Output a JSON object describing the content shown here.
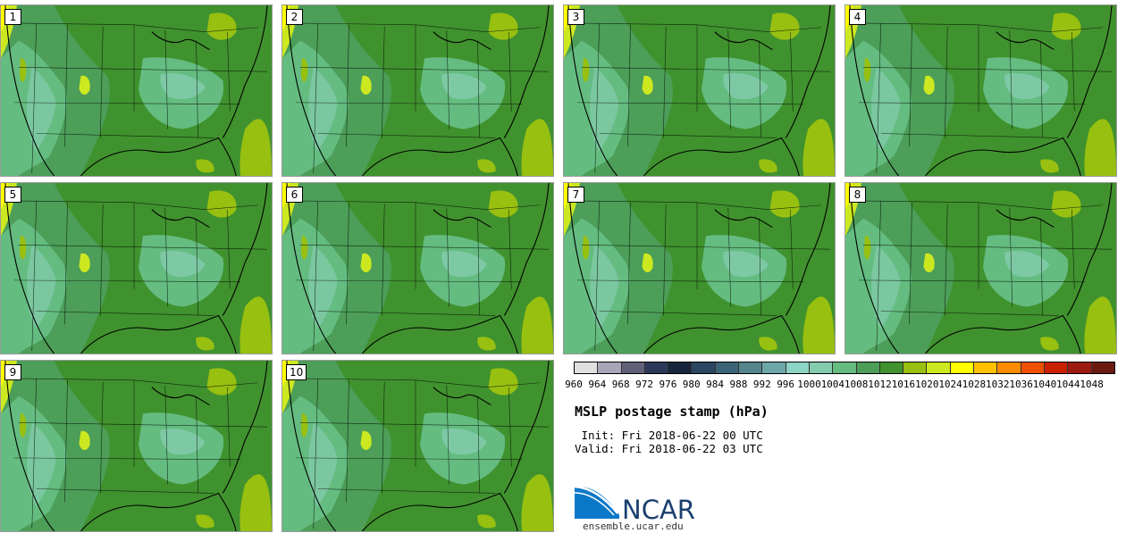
{
  "panels": [
    {
      "label": "1"
    },
    {
      "label": "2"
    },
    {
      "label": "3"
    },
    {
      "label": "4"
    },
    {
      "label": "5"
    },
    {
      "label": "6"
    },
    {
      "label": "7"
    },
    {
      "label": "8"
    },
    {
      "label": "9"
    },
    {
      "label": "10"
    }
  ],
  "colorbar": {
    "levels": [
      "960",
      "964",
      "968",
      "972",
      "976",
      "980",
      "984",
      "988",
      "992",
      "996",
      "1000",
      "1004",
      "1008",
      "1012",
      "1016",
      "1020",
      "1024",
      "1028",
      "1032",
      "1036",
      "1040",
      "1044",
      "1048"
    ],
    "colors": [
      "#e0e0e0",
      "#a6a6b6",
      "#606078",
      "#2c3858",
      "#18243a",
      "#2a4660",
      "#3c6478",
      "#54848c",
      "#6ca8a8",
      "#8cd4c4",
      "#84ccae",
      "#64bc80",
      "#4c9e58",
      "#40922e",
      "#98c010",
      "#cce820",
      "#ffff00",
      "#ffc000",
      "#ff8c00",
      "#f05000",
      "#c82000",
      "#9c1a10",
      "#6c1a10"
    ]
  },
  "title": "MSLP postage stamp (hPa)",
  "init_line": " Init: Fri 2018-06-22 00 UTC",
  "valid_line": "Valid: Fri 2018-06-22 03 UTC",
  "logo": {
    "text": "NCAR",
    "color": "#1a3f6e",
    "swoosh_color": "#0a78c8"
  },
  "url": "ensemble.ucar.edu",
  "map_colors": {
    "c1012": "#40922e",
    "c1008": "#4c9e58",
    "c1004": "#64bc80",
    "c1000": "#84ccae",
    "c1016": "#98c010",
    "c1020": "#cce820",
    "c1024": "#ffff00"
  }
}
